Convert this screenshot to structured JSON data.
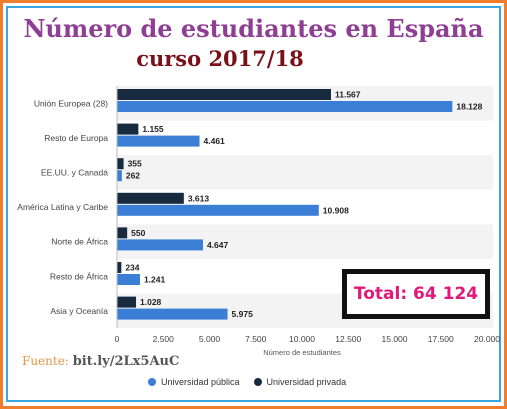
{
  "title": "Número de estudiantes en España",
  "subtitle": "curso 2017/18",
  "total_label": "Total: 64 124",
  "source": {
    "label": "Fuente:",
    "link": "bit.ly/2Lx5AuC"
  },
  "colors": {
    "publica": "#3a7fd5",
    "privada": "#172a40",
    "title": "#8e3f93",
    "subtitle": "#7a1018",
    "total": "#e0197a"
  },
  "chart_data": {
    "type": "bar",
    "orientation": "horizontal",
    "categories": [
      "Unión Europea (28)",
      "Resto de Europa",
      "EE.UU. y Canadá",
      "América Latina y Caribe",
      "Norte de África",
      "Resto de África",
      "Asia y Oceanía"
    ],
    "series": [
      {
        "name": "Universidad privada",
        "values": [
          11567,
          1155,
          355,
          3613,
          550,
          234,
          1028
        ],
        "labels": [
          "11.567",
          "1.155",
          "355",
          "3.613",
          "550",
          "234",
          "1.028"
        ]
      },
      {
        "name": "Universidad pública",
        "values": [
          18128,
          4461,
          262,
          10908,
          4647,
          1241,
          5975
        ],
        "labels": [
          "18.128",
          "4.461",
          "262",
          "10.908",
          "4.647",
          "1.241",
          "5.975"
        ]
      }
    ],
    "xlabel": "Número de estudiantes",
    "xlim": [
      0,
      20000
    ],
    "xticks": [
      0,
      2500,
      5000,
      7500,
      10000,
      12500,
      15000,
      17500,
      20000
    ],
    "xtick_labels": [
      "0",
      "2.500",
      "5.000",
      "7.500",
      "10.000",
      "12.500",
      "15.000",
      "17.500",
      "20.000"
    ],
    "legend": {
      "placement": "bottom",
      "order": [
        "Universidad pública",
        "Universidad privada"
      ]
    },
    "grid": false
  }
}
